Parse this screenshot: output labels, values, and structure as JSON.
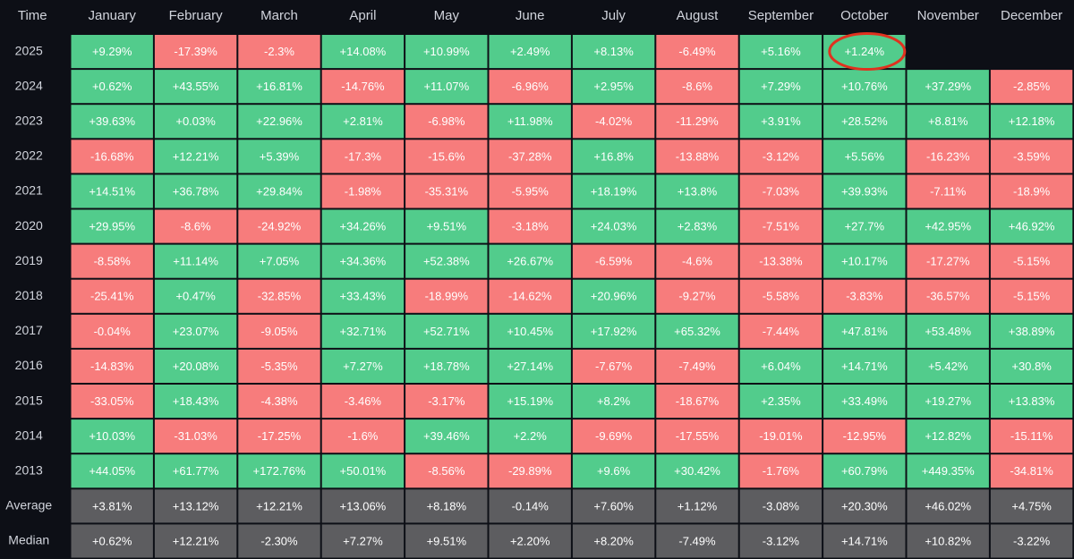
{
  "table": {
    "header": [
      "Time",
      "January",
      "February",
      "March",
      "April",
      "May",
      "June",
      "July",
      "August",
      "September",
      "October",
      "November",
      "December"
    ],
    "rows": [
      [
        "2025",
        "+9.29%",
        "-17.39%",
        "-2.3%",
        "+14.08%",
        "+10.99%",
        "+2.49%",
        "+8.13%",
        "-6.49%",
        "+5.16%",
        "+1.24%",
        null,
        null
      ],
      [
        "2024",
        "+0.62%",
        "+43.55%",
        "+16.81%",
        "-14.76%",
        "+11.07%",
        "-6.96%",
        "+2.95%",
        "-8.6%",
        "+7.29%",
        "+10.76%",
        "+37.29%",
        "-2.85%"
      ],
      [
        "2023",
        "+39.63%",
        "+0.03%",
        "+22.96%",
        "+2.81%",
        "-6.98%",
        "+11.98%",
        "-4.02%",
        "-11.29%",
        "+3.91%",
        "+28.52%",
        "+8.81%",
        "+12.18%"
      ],
      [
        "2022",
        "-16.68%",
        "+12.21%",
        "+5.39%",
        "-17.3%",
        "-15.6%",
        "-37.28%",
        "+16.8%",
        "-13.88%",
        "-3.12%",
        "+5.56%",
        "-16.23%",
        "-3.59%"
      ],
      [
        "2021",
        "+14.51%",
        "+36.78%",
        "+29.84%",
        "-1.98%",
        "-35.31%",
        "-5.95%",
        "+18.19%",
        "+13.8%",
        "-7.03%",
        "+39.93%",
        "-7.11%",
        "-18.9%"
      ],
      [
        "2020",
        "+29.95%",
        "-8.6%",
        "-24.92%",
        "+34.26%",
        "+9.51%",
        "-3.18%",
        "+24.03%",
        "+2.83%",
        "-7.51%",
        "+27.7%",
        "+42.95%",
        "+46.92%"
      ],
      [
        "2019",
        "-8.58%",
        "+11.14%",
        "+7.05%",
        "+34.36%",
        "+52.38%",
        "+26.67%",
        "-6.59%",
        "-4.6%",
        "-13.38%",
        "+10.17%",
        "-17.27%",
        "-5.15%"
      ],
      [
        "2018",
        "-25.41%",
        "+0.47%",
        "-32.85%",
        "+33.43%",
        "-18.99%",
        "-14.62%",
        "+20.96%",
        "-9.27%",
        "-5.58%",
        "-3.83%",
        "-36.57%",
        "-5.15%"
      ],
      [
        "2017",
        "-0.04%",
        "+23.07%",
        "-9.05%",
        "+32.71%",
        "+52.71%",
        "+10.45%",
        "+17.92%",
        "+65.32%",
        "-7.44%",
        "+47.81%",
        "+53.48%",
        "+38.89%"
      ],
      [
        "2016",
        "-14.83%",
        "+20.08%",
        "-5.35%",
        "+7.27%",
        "+18.78%",
        "+27.14%",
        "-7.67%",
        "-7.49%",
        "+6.04%",
        "+14.71%",
        "+5.42%",
        "+30.8%"
      ],
      [
        "2015",
        "-33.05%",
        "+18.43%",
        "-4.38%",
        "-3.46%",
        "-3.17%",
        "+15.19%",
        "+8.2%",
        "-18.67%",
        "+2.35%",
        "+33.49%",
        "+19.27%",
        "+13.83%"
      ],
      [
        "2014",
        "+10.03%",
        "-31.03%",
        "-17.25%",
        "-1.6%",
        "+39.46%",
        "+2.2%",
        "-9.69%",
        "-17.55%",
        "-19.01%",
        "-12.95%",
        "+12.82%",
        "-15.11%"
      ],
      [
        "2013",
        "+44.05%",
        "+61.77%",
        "+172.76%",
        "+50.01%",
        "-8.56%",
        "-29.89%",
        "+9.6%",
        "+30.42%",
        "-1.76%",
        "+60.79%",
        "+449.35%",
        "-34.81%"
      ]
    ],
    "summary_rows": [
      [
        "Average",
        "+3.81%",
        "+13.12%",
        "+12.21%",
        "+13.06%",
        "+8.18%",
        "-0.14%",
        "+7.60%",
        "+1.12%",
        "-3.08%",
        "+20.30%",
        "+46.02%",
        "+4.75%"
      ],
      [
        "Median",
        "+0.62%",
        "+12.21%",
        "-2.30%",
        "+7.27%",
        "+9.51%",
        "+2.20%",
        "+8.20%",
        "-7.49%",
        "-3.12%",
        "+14.71%",
        "+10.82%",
        "-3.22%"
      ]
    ]
  }
}
